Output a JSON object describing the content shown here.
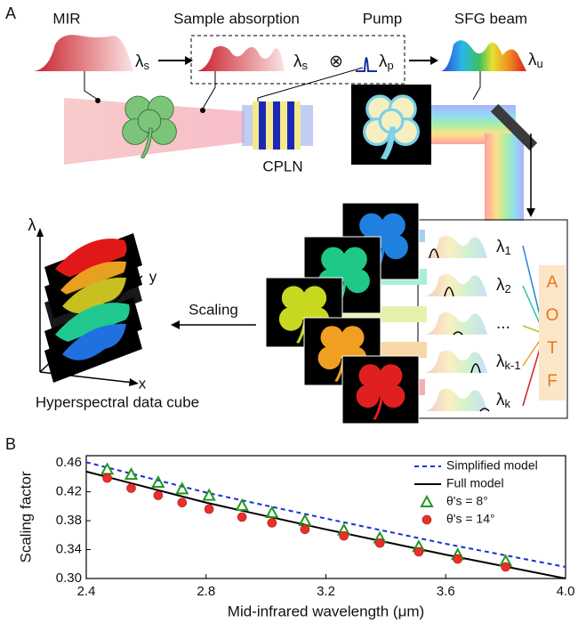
{
  "panel_a": {
    "label": "A",
    "mir": "MIR",
    "mir_lambda": [
      "λ",
      "s"
    ],
    "sample_absorption": "Sample absorption",
    "sample_lambda": [
      "λ",
      "s"
    ],
    "otimes": "⊗",
    "pump_lambda": [
      "λ",
      "p"
    ],
    "pump": "Pump",
    "sfg_beam": "SFG beam",
    "sfg_lambda": [
      "λ",
      "u"
    ],
    "crystal": "CPLN",
    "channels": [
      [
        "λ",
        "1"
      ],
      [
        "λ",
        "2"
      ],
      [
        "...",
        ""
      ],
      [
        "λ",
        "k-1"
      ],
      [
        "λ",
        "k"
      ]
    ],
    "aotf": [
      "A",
      "O",
      "T",
      "F"
    ],
    "scaling": "Scaling",
    "cube_axis_lambda": "λ",
    "cube_axis_y": "y",
    "cube_ellipsis": "...",
    "cube_axis_x": "x",
    "cube_caption": "Hyperspectral data cube"
  },
  "chart_data": {
    "type": "line",
    "panel_label": "B",
    "xlabel": "Mid-infrared wavelength (μm)",
    "ylabel": "Scaling factor",
    "xlim": [
      2.4,
      4.0
    ],
    "xticks": [
      2.4,
      2.8,
      3.2,
      3.6,
      {
        "value": 4.0,
        "label": "4.0"
      }
    ],
    "ylim": [
      0.3,
      0.47
    ],
    "yticks": [
      {
        "value": 0.3,
        "label": "0.30"
      },
      0.34,
      0.38,
      0.42,
      0.46
    ],
    "legend": "upper right",
    "series": [
      {
        "name": "Simplified model",
        "color": "#1a2fd6",
        "style": "dashed",
        "x": [
          2.4,
          2.8,
          3.2,
          3.6,
          4.0
        ],
        "values": [
          0.461,
          0.419,
          0.383,
          0.348,
          0.316
        ]
      },
      {
        "name": "Full model",
        "color": "#000000",
        "style": "solid",
        "x": [
          2.4,
          2.8,
          3.2,
          3.6,
          4.0
        ],
        "values": [
          0.448,
          0.405,
          0.368,
          0.333,
          0.3
        ]
      },
      {
        "name": "θ's = 8°",
        "color": "#1f9a1f",
        "marker": "triangle",
        "x": [
          2.47,
          2.55,
          2.64,
          2.72,
          2.81,
          2.92,
          3.02,
          3.13,
          3.26,
          3.38,
          3.51,
          3.64,
          3.8
        ],
        "values": [
          0.451,
          0.444,
          0.433,
          0.424,
          0.415,
          0.401,
          0.391,
          0.38,
          0.367,
          0.356,
          0.344,
          0.333,
          0.324
        ]
      },
      {
        "name": "θ's = 14°",
        "color": "#e8302a",
        "marker": "circle",
        "x": [
          2.47,
          2.55,
          2.64,
          2.72,
          2.81,
          2.92,
          3.02,
          3.13,
          3.26,
          3.38,
          3.51,
          3.64,
          3.8
        ],
        "values": [
          0.439,
          0.425,
          0.415,
          0.405,
          0.396,
          0.385,
          0.377,
          0.368,
          0.359,
          0.349,
          0.337,
          0.327,
          0.316
        ]
      }
    ]
  }
}
